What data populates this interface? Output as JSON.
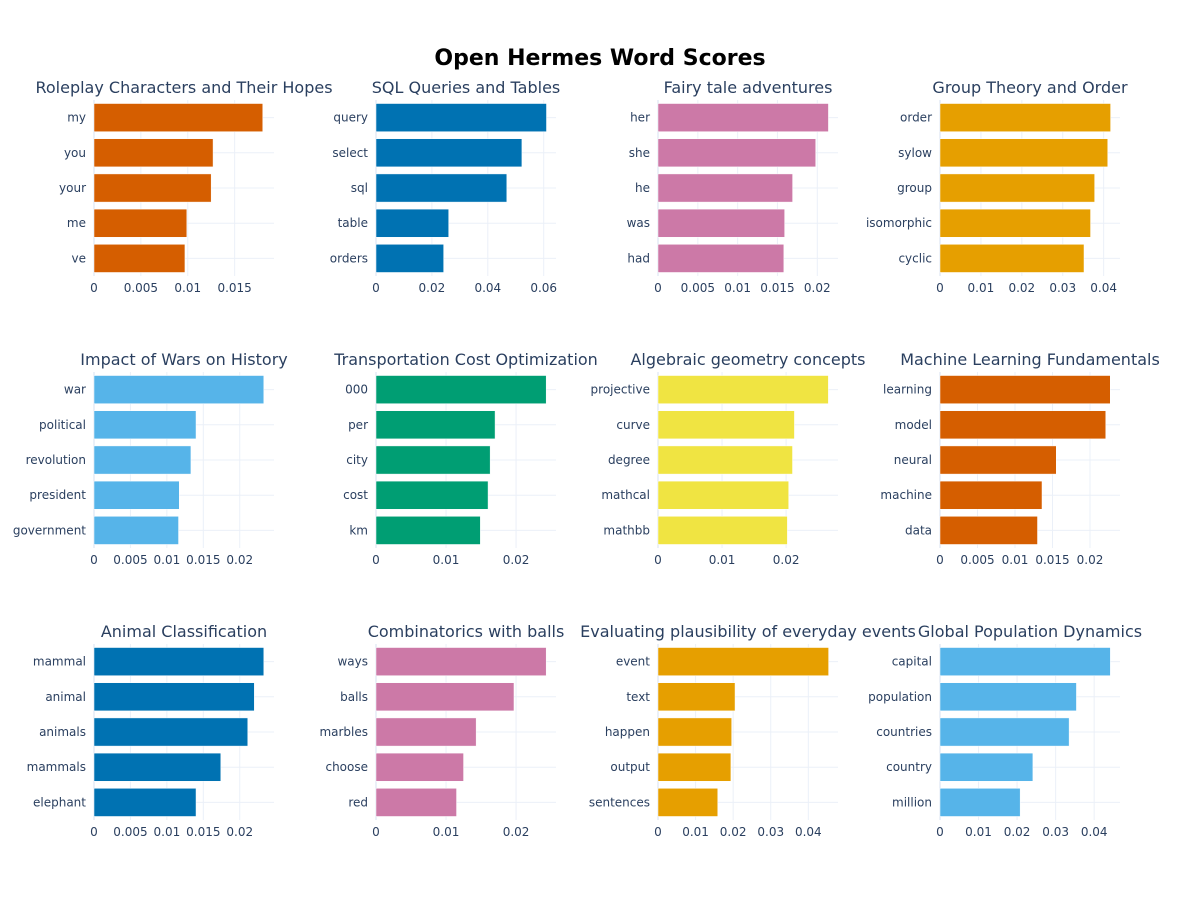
{
  "title": "Open Hermes Word Scores",
  "chart_data": [
    {
      "type": "bar",
      "orientation": "horizontal",
      "title": "Roleplay Characters and Their Hopes",
      "color": "#D55E00",
      "categories": [
        "my",
        "you",
        "your",
        "me",
        "ve"
      ],
      "values": [
        0.018,
        0.0127,
        0.0125,
        0.0099,
        0.0097
      ],
      "xlim": [
        0,
        0.0192
      ],
      "xticks": [
        0,
        0.005,
        0.01,
        0.015
      ],
      "xtick_labels": [
        "0",
        "0.005",
        "0.01",
        "0.015"
      ]
    },
    {
      "type": "bar",
      "orientation": "horizontal",
      "title": "SQL Queries and Tables",
      "color": "#0072B2",
      "categories": [
        "query",
        "select",
        "sql",
        "table",
        "orders"
      ],
      "values": [
        0.061,
        0.0522,
        0.0468,
        0.026,
        0.0242
      ],
      "xlim": [
        0,
        0.0644
      ],
      "xticks": [
        0,
        0.02,
        0.04,
        0.06
      ],
      "xtick_labels": [
        "0",
        "0.02",
        "0.04",
        "0.06"
      ]
    },
    {
      "type": "bar",
      "orientation": "horizontal",
      "title": "Fairy tale adventures",
      "color": "#CC79A7",
      "categories": [
        "her",
        "she",
        "he",
        "was",
        "had"
      ],
      "values": [
        0.0214,
        0.0198,
        0.0169,
        0.0159,
        0.0158
      ],
      "xlim": [
        0,
        0.0226
      ],
      "xticks": [
        0,
        0.005,
        0.01,
        0.015,
        0.02
      ],
      "xtick_labels": [
        "0",
        "0.005",
        "0.01",
        "0.015",
        "0.02"
      ]
    },
    {
      "type": "bar",
      "orientation": "horizontal",
      "title": "Group Theory and Order",
      "color": "#E69F00",
      "categories": [
        "order",
        "sylow",
        "group",
        "isomorphic",
        "cyclic"
      ],
      "values": [
        0.0417,
        0.041,
        0.0378,
        0.0368,
        0.0352
      ],
      "xlim": [
        0,
        0.044
      ],
      "xticks": [
        0,
        0.01,
        0.02,
        0.03,
        0.04
      ],
      "xtick_labels": [
        "0",
        "0.01",
        "0.02",
        "0.03",
        "0.04"
      ]
    },
    {
      "type": "bar",
      "orientation": "horizontal",
      "title": "Impact of Wars on History",
      "color": "#56B4E9",
      "categories": [
        "war",
        "political",
        "revolution",
        "president",
        "government"
      ],
      "values": [
        0.0233,
        0.014,
        0.0133,
        0.0117,
        0.0116
      ],
      "xlim": [
        0,
        0.0247
      ],
      "xticks": [
        0,
        0.005,
        0.01,
        0.015,
        0.02
      ],
      "xtick_labels": [
        "0",
        "0.005",
        "0.01",
        "0.015",
        "0.02"
      ]
    },
    {
      "type": "bar",
      "orientation": "horizontal",
      "title": "Transportation Cost Optimization",
      "color": "#009E73",
      "categories": [
        "000",
        "per",
        "city",
        "cost",
        "km"
      ],
      "values": [
        0.0243,
        0.017,
        0.0163,
        0.016,
        0.0149
      ],
      "xlim": [
        0,
        0.0257
      ],
      "xticks": [
        0,
        0.01,
        0.02
      ],
      "xtick_labels": [
        "0",
        "0.01",
        "0.02"
      ]
    },
    {
      "type": "bar",
      "orientation": "horizontal",
      "title": "Algebraic geometry concepts",
      "color": "#F0E442",
      "categories": [
        "projective",
        "curve",
        "degree",
        "mathcal",
        "mathbb"
      ],
      "values": [
        0.0266,
        0.0213,
        0.021,
        0.0204,
        0.0202
      ],
      "xlim": [
        0,
        0.0281
      ],
      "xticks": [
        0,
        0.01,
        0.02
      ],
      "xtick_labels": [
        "0",
        "0.01",
        "0.02"
      ]
    },
    {
      "type": "bar",
      "orientation": "horizontal",
      "title": "Machine Learning Fundamentals",
      "color": "#D55E00",
      "categories": [
        "learning",
        "model",
        "neural",
        "machine",
        "data"
      ],
      "values": [
        0.0227,
        0.0221,
        0.0155,
        0.0136,
        0.013
      ],
      "xlim": [
        0,
        0.024
      ],
      "xticks": [
        0,
        0.005,
        0.01,
        0.015,
        0.02
      ],
      "xtick_labels": [
        "0",
        "0.005",
        "0.01",
        "0.015",
        "0.02"
      ]
    },
    {
      "type": "bar",
      "orientation": "horizontal",
      "title": "Animal Classification",
      "color": "#0072B2",
      "categories": [
        "mammal",
        "animal",
        "animals",
        "mammals",
        "elephant"
      ],
      "values": [
        0.0233,
        0.022,
        0.0211,
        0.0174,
        0.014
      ],
      "xlim": [
        0,
        0.0247
      ],
      "xticks": [
        0,
        0.005,
        0.01,
        0.015,
        0.02
      ],
      "xtick_labels": [
        "0",
        "0.005",
        "0.01",
        "0.015",
        "0.02"
      ]
    },
    {
      "type": "bar",
      "orientation": "horizontal",
      "title": "Combinatorics with balls",
      "color": "#CC79A7",
      "categories": [
        "ways",
        "balls",
        "marbles",
        "choose",
        "red"
      ],
      "values": [
        0.0243,
        0.0197,
        0.0143,
        0.0125,
        0.0115
      ],
      "xlim": [
        0,
        0.0257
      ],
      "xticks": [
        0,
        0.01,
        0.02
      ],
      "xtick_labels": [
        "0",
        "0.01",
        "0.02"
      ]
    },
    {
      "type": "bar",
      "orientation": "horizontal",
      "title": "Evaluating plausibility of everyday events",
      "color": "#E69F00",
      "categories": [
        "event",
        "text",
        "happen",
        "output",
        "sentences"
      ],
      "values": [
        0.0454,
        0.0205,
        0.0196,
        0.0194,
        0.0159
      ],
      "xlim": [
        0,
        0.0479
      ],
      "xticks": [
        0,
        0.01,
        0.02,
        0.03,
        0.04
      ],
      "xtick_labels": [
        "0",
        "0.01",
        "0.02",
        "0.03",
        "0.04"
      ]
    },
    {
      "type": "bar",
      "orientation": "horizontal",
      "title": "Global Population Dynamics",
      "color": "#56B4E9",
      "categories": [
        "capital",
        "population",
        "countries",
        "country",
        "million"
      ],
      "values": [
        0.0442,
        0.0354,
        0.0335,
        0.0241,
        0.0208
      ],
      "xlim": [
        0,
        0.0467
      ],
      "xticks": [
        0,
        0.01,
        0.02,
        0.03,
        0.04
      ],
      "xtick_labels": [
        "0",
        "0.01",
        "0.02",
        "0.03",
        "0.04"
      ]
    }
  ]
}
